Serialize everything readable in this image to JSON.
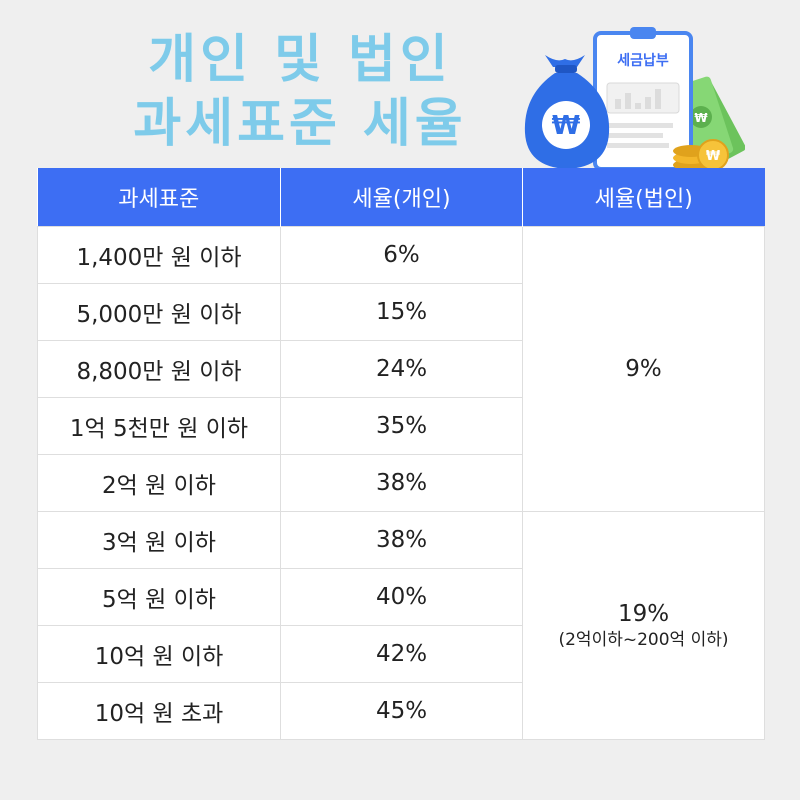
{
  "title": {
    "line1": "개인 및 법인",
    "line2": "과세표준 세율"
  },
  "illustration": {
    "clipboard_label": "세금납부",
    "money_bag_symbol": "₩",
    "coin_symbol": "₩",
    "bill_symbol": "₩",
    "colors": {
      "bag": "#2f6ee6",
      "clipboard_border": "#4a86f0",
      "bill": "#7ccf6a",
      "coin": "#f3b72b"
    }
  },
  "table": {
    "headers": [
      "과세표준",
      "세율(개인)",
      "세율(법인)"
    ],
    "header_color": "#3d6ef3",
    "rows": [
      {
        "bracket": "1,400만 원 이하",
        "personal": "6%"
      },
      {
        "bracket": "5,000만 원 이하",
        "personal": "15%"
      },
      {
        "bracket": "8,800만 원 이하",
        "personal": "24%"
      },
      {
        "bracket": "1억 5천만 원 이하",
        "personal": "35%"
      },
      {
        "bracket": "2억 원 이하",
        "personal": "38%"
      },
      {
        "bracket": "3억 원 이하",
        "personal": "38%"
      },
      {
        "bracket": "5억 원 이하",
        "personal": "40%"
      },
      {
        "bracket": "10억 원 이하",
        "personal": "42%"
      },
      {
        "bracket": "10억 원 초과",
        "personal": "45%"
      }
    ],
    "corporate": [
      {
        "rate": "9%",
        "note": ""
      },
      {
        "rate": "19%",
        "note": "(2억이하~200억 이하)"
      }
    ]
  }
}
